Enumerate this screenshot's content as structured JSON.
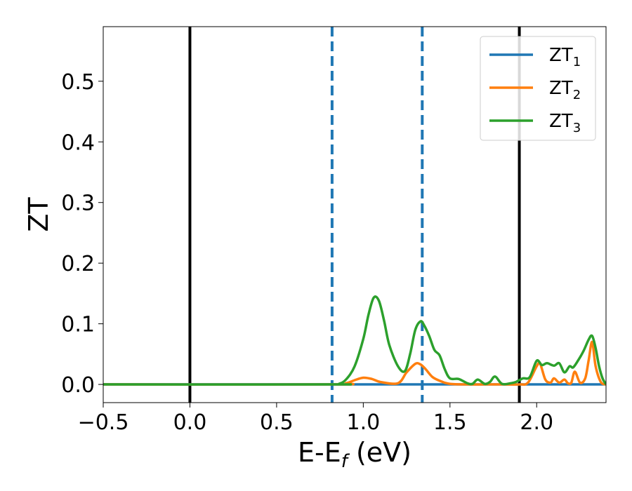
{
  "chart_data": {
    "type": "line",
    "xlabel": {
      "main": "E-E",
      "sub": "f",
      "rest": " (eV)"
    },
    "ylabel": "ZT",
    "xlim": [
      -0.5,
      2.4
    ],
    "ylim": [
      -0.03,
      0.59
    ],
    "x_ticks": [
      {
        "value": -0.5,
        "label": "−0.5"
      },
      {
        "value": 0.0,
        "label": "0.0"
      },
      {
        "value": 0.5,
        "label": "0.5"
      },
      {
        "value": 1.0,
        "label": "1.0"
      },
      {
        "value": 1.5,
        "label": "1.5"
      },
      {
        "value": 2.0,
        "label": "2.0"
      }
    ],
    "y_ticks": [
      {
        "value": 0.0,
        "label": "0.0"
      },
      {
        "value": 0.1,
        "label": "0.1"
      },
      {
        "value": 0.2,
        "label": "0.2"
      },
      {
        "value": 0.3,
        "label": "0.3"
      },
      {
        "value": 0.4,
        "label": "0.4"
      },
      {
        "value": 0.5,
        "label": "0.5"
      }
    ],
    "grid": false,
    "legend_position": "top-right",
    "vlines": [
      {
        "x": 0.0,
        "color": "#000000",
        "style": "solid"
      },
      {
        "x": 1.9,
        "color": "#000000",
        "style": "solid"
      },
      {
        "x": 0.82,
        "color": "#1f77b4",
        "style": "dashed"
      },
      {
        "x": 1.34,
        "color": "#1f77b4",
        "style": "dashed"
      }
    ],
    "series": [
      {
        "name": "ZT",
        "name_sub": "1",
        "color": "#1f77b4",
        "x": [
          -0.5,
          2.4
        ],
        "y": [
          0.0,
          0.0
        ]
      },
      {
        "name": "ZT",
        "name_sub": "2",
        "color": "#ff7f0e",
        "x": [
          -0.5,
          0.82,
          0.9,
          0.95,
          1.0,
          1.05,
          1.1,
          1.2,
          1.25,
          1.3,
          1.33,
          1.36,
          1.4,
          1.45,
          1.5,
          1.6,
          1.7,
          1.8,
          1.9,
          1.95,
          2.0,
          2.02,
          2.05,
          2.08,
          2.1,
          2.13,
          2.16,
          2.18,
          2.2,
          2.22,
          2.25,
          2.28,
          2.3,
          2.32,
          2.34,
          2.37,
          2.4
        ],
        "y": [
          0.0,
          0.0,
          0.002,
          0.007,
          0.011,
          0.009,
          0.004,
          0.002,
          0.02,
          0.034,
          0.033,
          0.025,
          0.012,
          0.005,
          0.001,
          0.0,
          0.0,
          0.0,
          0.0,
          0.003,
          0.03,
          0.034,
          0.008,
          0.003,
          0.01,
          0.003,
          0.008,
          0.002,
          0.003,
          0.021,
          0.003,
          0.01,
          0.04,
          0.07,
          0.03,
          0.004,
          0.0
        ]
      },
      {
        "name": "ZT",
        "name_sub": "3",
        "color": "#2ca02c",
        "x": [
          -0.5,
          0.82,
          0.86,
          0.9,
          0.95,
          1.0,
          1.03,
          1.06,
          1.09,
          1.12,
          1.15,
          1.2,
          1.24,
          1.27,
          1.3,
          1.33,
          1.35,
          1.38,
          1.41,
          1.44,
          1.47,
          1.5,
          1.55,
          1.6,
          1.63,
          1.66,
          1.7,
          1.73,
          1.76,
          1.8,
          1.85,
          1.88,
          1.92,
          1.96,
          2.0,
          2.03,
          2.06,
          2.1,
          2.13,
          2.16,
          2.19,
          2.21,
          2.24,
          2.27,
          2.3,
          2.32,
          2.34,
          2.36,
          2.38,
          2.4
        ],
        "y": [
          0.0,
          0.0,
          0.001,
          0.008,
          0.03,
          0.075,
          0.115,
          0.143,
          0.138,
          0.105,
          0.065,
          0.03,
          0.022,
          0.05,
          0.09,
          0.104,
          0.098,
          0.08,
          0.057,
          0.048,
          0.025,
          0.01,
          0.009,
          0.002,
          0.001,
          0.008,
          0.001,
          0.004,
          0.013,
          0.001,
          0.002,
          0.004,
          0.01,
          0.012,
          0.039,
          0.032,
          0.035,
          0.031,
          0.035,
          0.02,
          0.03,
          0.028,
          0.04,
          0.055,
          0.074,
          0.08,
          0.06,
          0.03,
          0.01,
          0.0
        ]
      }
    ]
  }
}
